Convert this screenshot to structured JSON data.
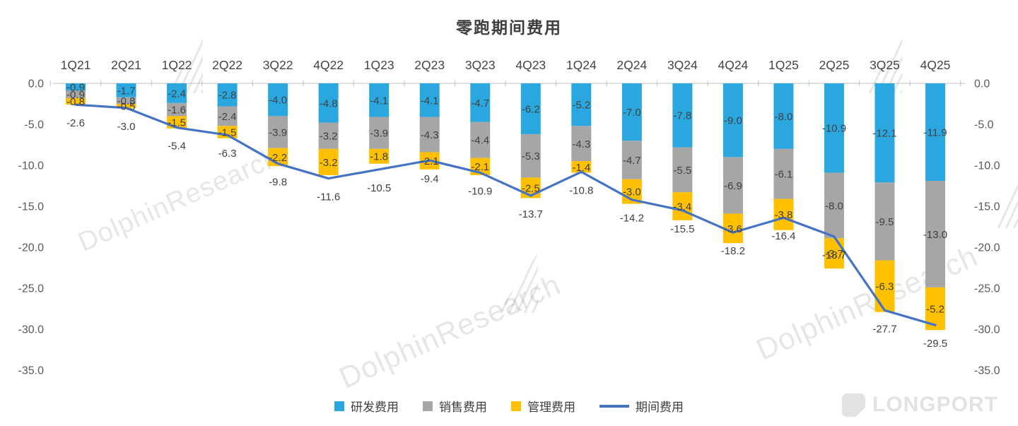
{
  "title": "零跑期间费用",
  "watermark": {
    "text": "DolphinResearch",
    "brand": "LONGPORT"
  },
  "chart_data": {
    "type": "bar",
    "stacked": true,
    "title": "零跑期间费用",
    "categories": [
      "1Q21",
      "2Q21",
      "1Q22",
      "2Q22",
      "3Q22",
      "4Q22",
      "1Q23",
      "2Q23",
      "3Q23",
      "4Q23",
      "1Q24",
      "2Q24",
      "3Q24",
      "4Q24",
      "1Q25",
      "2Q25",
      "3Q25",
      "4Q25"
    ],
    "series": [
      {
        "name": "研发费用",
        "color": "#2BA7DF",
        "values": [
          -0.9,
          -1.7,
          -2.4,
          -2.8,
          -4.0,
          -4.8,
          -4.1,
          -4.1,
          -4.7,
          -6.2,
          -5.2,
          -7.0,
          -7.8,
          -9.0,
          -8.0,
          -10.9,
          -12.1,
          -11.9
        ]
      },
      {
        "name": "销售费用",
        "color": "#A6A6A6",
        "values": [
          -0.9,
          -0.8,
          -1.6,
          -2.4,
          -3.9,
          -3.2,
          -3.9,
          -4.3,
          -4.4,
          -5.3,
          -4.3,
          -4.7,
          -5.5,
          -6.9,
          -6.1,
          -8.0,
          -9.5,
          -13.0
        ]
      },
      {
        "name": "管理费用",
        "color": "#FFC000",
        "values": [
          -0.8,
          -0.5,
          -1.5,
          -1.5,
          -2.2,
          -3.2,
          -1.8,
          -2.1,
          -2.1,
          -2.5,
          -1.4,
          -3.0,
          -3.4,
          -3.6,
          -3.8,
          -3.7,
          -6.3,
          -5.2
        ]
      }
    ],
    "line_series": {
      "name": "期间费用",
      "color": "#4472C4",
      "values": [
        -2.6,
        -3.0,
        -5.4,
        -6.3,
        -9.8,
        -11.6,
        -10.5,
        -9.4,
        -10.9,
        -13.7,
        -10.8,
        -14.2,
        -15.5,
        -18.2,
        -16.4,
        -18.7,
        -27.7,
        -29.5
      ]
    },
    "y_axis": {
      "ticks": [
        0,
        -5,
        -10,
        -15,
        -20,
        -25,
        -30,
        -35
      ]
    },
    "ylim": [
      -35,
      0
    ],
    "grid": false,
    "legend_position": "bottom",
    "category_axis_position": "top"
  }
}
